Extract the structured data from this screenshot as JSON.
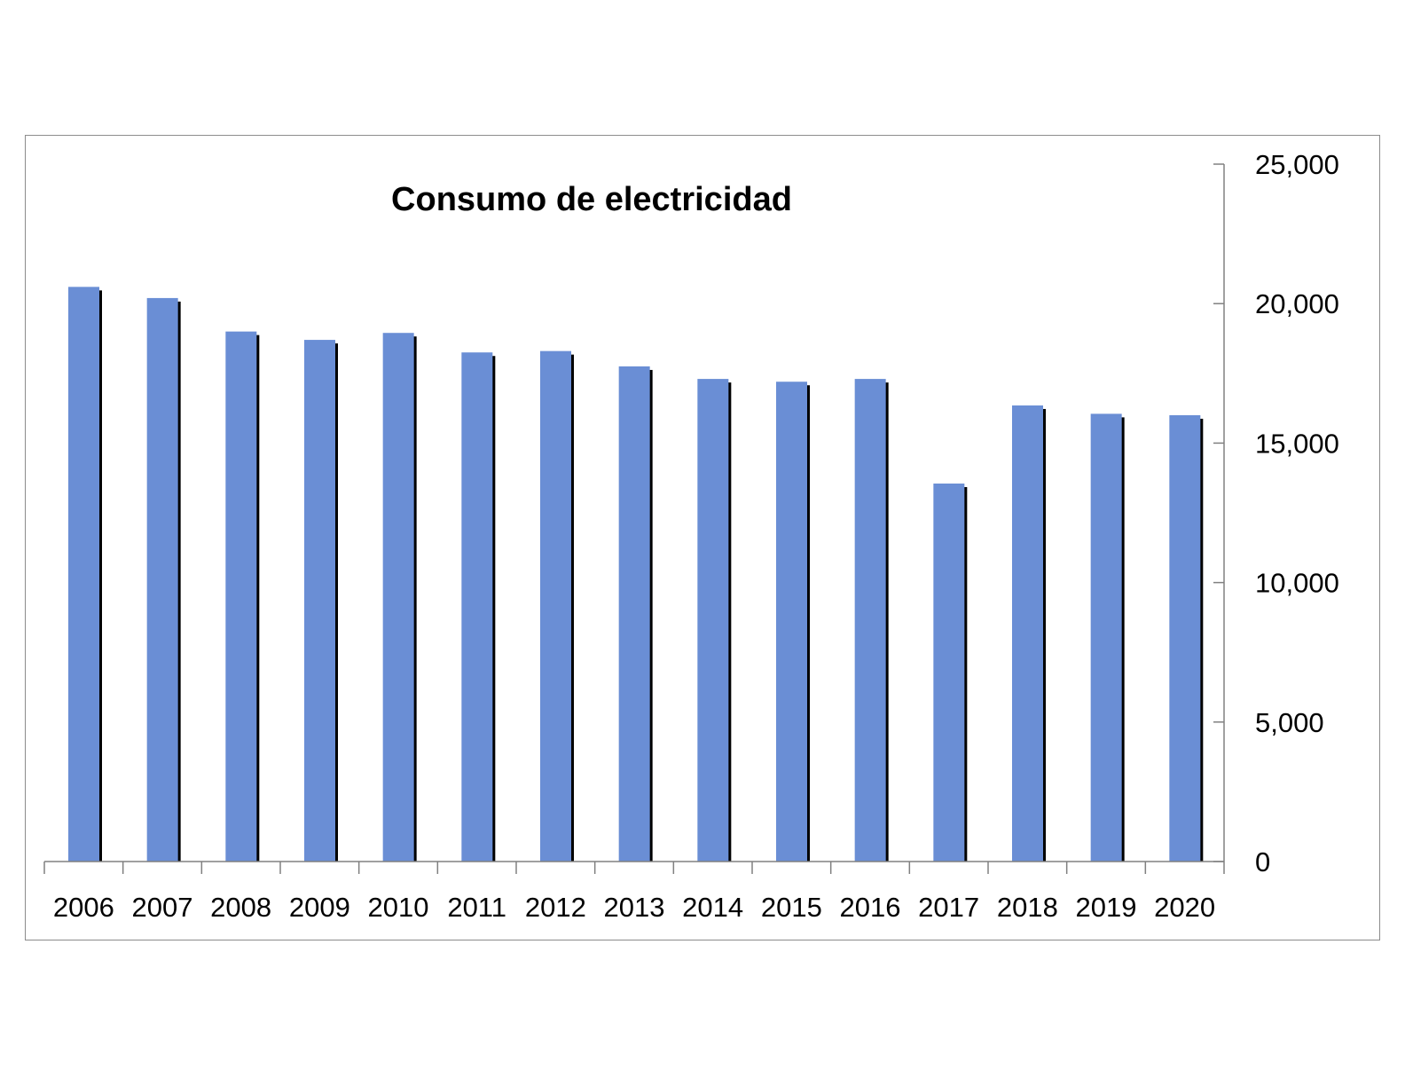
{
  "chart_data": {
    "type": "bar",
    "title": "Consumo de electricidad",
    "xlabel": "",
    "ylabel": "",
    "categories": [
      "2006",
      "2007",
      "2008",
      "2009",
      "2010",
      "2011",
      "2012",
      "2013",
      "2014",
      "2015",
      "2016",
      "2017",
      "2018",
      "2019",
      "2020"
    ],
    "values": [
      20600,
      20200,
      19000,
      18700,
      18950,
      18250,
      18300,
      17750,
      17300,
      17200,
      17300,
      13550,
      16350,
      16050,
      16000
    ],
    "ylim": [
      0,
      25000
    ],
    "yticks": [
      0,
      5000,
      10000,
      15000,
      20000,
      25000
    ],
    "ytick_labels": [
      "0",
      "5,000",
      "10,000",
      "15,000",
      "20,000",
      "25,000"
    ],
    "y_axis_side": "right",
    "grid": false,
    "legend": "none",
    "colors": {
      "bar": "#6a8ed5",
      "bar_shadow": "#000000",
      "axis": "#808080"
    }
  }
}
